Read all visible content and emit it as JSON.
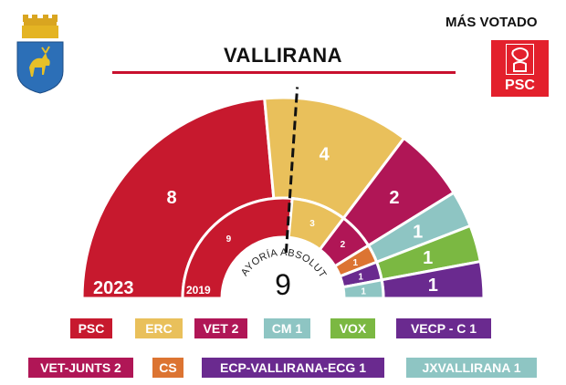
{
  "header": {
    "title": "VALLIRANA",
    "winner_label": "MÁS VOTADO",
    "winner_party": "PSC",
    "title_line_color": "#c8102e"
  },
  "majority": {
    "label": "MAYORÍA ABSOLUTA",
    "value": "9"
  },
  "chart_data": {
    "type": "semicircle-seats",
    "total_seats": 17,
    "majority": 9,
    "rings": [
      {
        "label": "2023",
        "series": [
          {
            "name": "PSC",
            "seats": 8,
            "color": "#c7192e"
          },
          {
            "name": "ERC",
            "seats": 4,
            "color": "#e9c05b"
          },
          {
            "name": "VET 2",
            "seats": 2,
            "color": "#b01656"
          },
          {
            "name": "CM 1",
            "seats": 1,
            "color": "#8ec5c3"
          },
          {
            "name": "VOX",
            "seats": 1,
            "color": "#7bb842"
          },
          {
            "name": "VECP - C 1",
            "seats": 1,
            "color": "#6a2a8f"
          }
        ]
      },
      {
        "label": "2019",
        "series": [
          {
            "name": "PSC",
            "seats": 9,
            "color": "#c7192e"
          },
          {
            "name": "ERC",
            "seats": 3,
            "color": "#e9c05b"
          },
          {
            "name": "VET-JUNTS 2",
            "seats": 2,
            "color": "#b01656"
          },
          {
            "name": "CS",
            "seats": 1,
            "color": "#dc7432"
          },
          {
            "name": "ECP-VALLIRANA-ECG 1",
            "seats": 1,
            "color": "#6a2a8f"
          },
          {
            "name": "JXVALLIRANA 1",
            "seats": 1,
            "color": "#8ec5c3"
          }
        ]
      }
    ]
  },
  "legend": [
    [
      {
        "label": "PSC",
        "color": "#c7192e"
      },
      {
        "label": "ERC",
        "color": "#e9c05b"
      },
      {
        "label": "VET 2",
        "color": "#b01656"
      },
      {
        "label": "CM 1",
        "color": "#8ec5c3"
      },
      {
        "label": "VOX",
        "color": "#7bb842"
      },
      {
        "label": "VECP - C 1",
        "color": "#6a2a8f"
      }
    ],
    [
      {
        "label": "VET-JUNTS 2",
        "color": "#b01656"
      },
      {
        "label": "CS",
        "color": "#dc7432"
      },
      {
        "label": "ECP-VALLIRANA-ECG 1",
        "color": "#6a2a8f"
      },
      {
        "label": "JXVALLIRANA 1",
        "color": "#8ec5c3"
      }
    ]
  ],
  "logo": {
    "text": "PSC",
    "color": "#e3202c",
    "icon": "rose-fist-icon"
  },
  "crest": {
    "icon": "vallirana-coat-of-arms-icon"
  }
}
